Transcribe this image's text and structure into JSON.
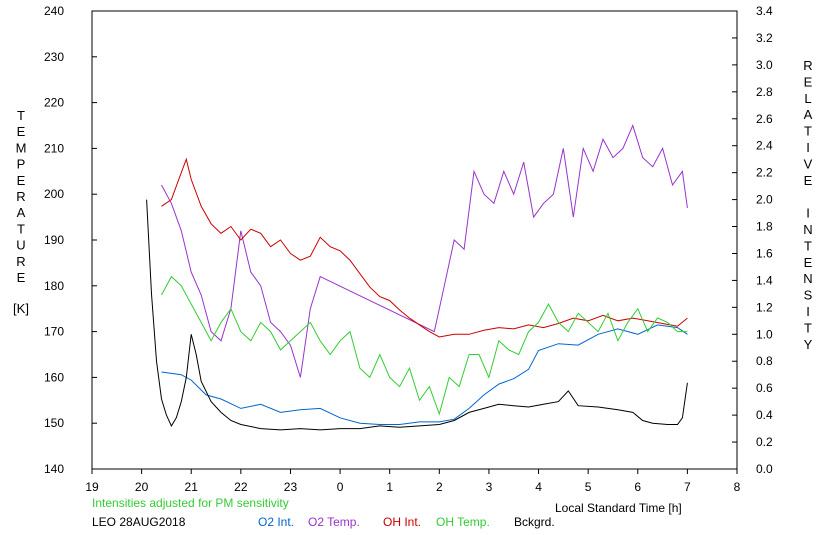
{
  "chart_data": {
    "type": "line",
    "xlabel": "Local Standard Time [h]",
    "ylabel_left_letters": [
      "T",
      "E",
      "M",
      "P",
      "E",
      "R",
      "A",
      "T",
      "U",
      "R",
      "E"
    ],
    "ylabel_left_unit": "[K]",
    "ylabel_right_words": [
      [
        "R",
        "E",
        "L",
        "A",
        "T",
        "I",
        "V",
        "E"
      ],
      [
        "I",
        "N",
        "T",
        "E",
        "N",
        "S",
        "I",
        "T",
        "Y"
      ]
    ],
    "x_ticks": [
      "19",
      "20",
      "21",
      "22",
      "23",
      "0",
      "1",
      "2",
      "3",
      "4",
      "5",
      "6",
      "7",
      "8"
    ],
    "xlim": [
      19,
      32
    ],
    "y_left_ticks": [
      "140",
      "150",
      "160",
      "170",
      "180",
      "190",
      "200",
      "210",
      "220",
      "230",
      "240"
    ],
    "ylim_left": [
      140,
      240
    ],
    "y_right_ticks": [
      "0.0",
      "0.2",
      "0.4",
      "0.6",
      "0.8",
      "1.0",
      "1.2",
      "1.4",
      "1.6",
      "1.8",
      "2.0",
      "2.2",
      "2.4",
      "2.6",
      "2.8",
      "3.0",
      "3.2",
      "3.4"
    ],
    "ylim_right": [
      0,
      3.4
    ],
    "note": "Intensities adjusted for PM sensitivity",
    "station_date": "LEO 28AUG2018",
    "grid": false,
    "series": [
      {
        "name": "O2 Int.",
        "axis": "right",
        "color": "#0066cc",
        "x": [
          20.4,
          20.8,
          21.0,
          21.3,
          21.6,
          22.0,
          22.4,
          22.8,
          23.2,
          23.6,
          24.0,
          24.4,
          24.8,
          25.2,
          25.6,
          26.0,
          26.3,
          26.6,
          26.9,
          27.2,
          27.5,
          27.8,
          28.0,
          28.4,
          28.8,
          29.2,
          29.6,
          30.0,
          30.4,
          30.8,
          31.0
        ],
        "y": [
          0.72,
          0.7,
          0.66,
          0.55,
          0.52,
          0.45,
          0.48,
          0.42,
          0.44,
          0.45,
          0.38,
          0.34,
          0.33,
          0.33,
          0.35,
          0.35,
          0.37,
          0.45,
          0.55,
          0.63,
          0.67,
          0.74,
          0.88,
          0.93,
          0.92,
          1.0,
          1.04,
          1.0,
          1.07,
          1.05,
          1.0
        ]
      },
      {
        "name": "O2 Temp.",
        "axis": "left",
        "color": "#9933cc",
        "x": [
          20.4,
          20.6,
          20.8,
          21.0,
          21.2,
          21.4,
          21.6,
          21.8,
          22.0,
          22.2,
          22.4,
          22.6,
          22.8,
          23.0,
          23.2,
          23.4,
          23.6,
          25.9,
          26.1,
          26.3,
          26.5,
          26.7,
          26.9,
          27.1,
          27.3,
          27.5,
          27.7,
          27.9,
          28.1,
          28.3,
          28.5,
          28.7,
          28.9,
          29.1,
          29.3,
          29.5,
          29.7,
          29.9,
          30.1,
          30.3,
          30.5,
          30.7,
          30.9,
          31.0
        ],
        "y": [
          202,
          198,
          192,
          183,
          178,
          170,
          168,
          175,
          192,
          183,
          180,
          172,
          170,
          167,
          160,
          175,
          182,
          170,
          180,
          190,
          188,
          205,
          200,
          198,
          205,
          200,
          207,
          195,
          198,
          200,
          210,
          195,
          210,
          205,
          212,
          208,
          210,
          215,
          208,
          206,
          210,
          202,
          205,
          197
        ]
      },
      {
        "name": "OH Int.",
        "axis": "right",
        "color": "#cc0000",
        "x": [
          20.4,
          20.6,
          20.8,
          20.9,
          21.0,
          21.2,
          21.4,
          21.6,
          21.8,
          22.0,
          22.2,
          22.4,
          22.6,
          22.8,
          23.0,
          23.2,
          23.4,
          23.6,
          23.8,
          24.0,
          24.2,
          24.4,
          24.6,
          24.8,
          25.0,
          25.2,
          25.4,
          25.6,
          25.8,
          26.0,
          26.3,
          26.6,
          26.9,
          27.2,
          27.5,
          27.8,
          28.1,
          28.4,
          28.7,
          29.0,
          29.3,
          29.6,
          29.9,
          30.2,
          30.5,
          30.8,
          31.0
        ],
        "y": [
          1.95,
          2.0,
          2.2,
          2.3,
          2.15,
          1.95,
          1.82,
          1.75,
          1.8,
          1.7,
          1.78,
          1.75,
          1.65,
          1.7,
          1.6,
          1.55,
          1.58,
          1.72,
          1.65,
          1.62,
          1.55,
          1.45,
          1.35,
          1.28,
          1.25,
          1.18,
          1.12,
          1.07,
          1.02,
          0.98,
          1.0,
          1.0,
          1.03,
          1.05,
          1.04,
          1.07,
          1.05,
          1.08,
          1.12,
          1.1,
          1.14,
          1.1,
          1.12,
          1.1,
          1.08,
          1.06,
          1.12
        ]
      },
      {
        "name": "OH Temp.",
        "axis": "left",
        "color": "#33cc33",
        "x": [
          20.4,
          20.6,
          20.8,
          21.0,
          21.2,
          21.4,
          21.6,
          21.8,
          22.0,
          22.2,
          22.4,
          22.6,
          22.8,
          23.0,
          23.2,
          23.4,
          23.6,
          23.8,
          24.0,
          24.2,
          24.4,
          24.6,
          24.8,
          25.0,
          25.2,
          25.4,
          25.6,
          25.8,
          26.0,
          26.2,
          26.4,
          26.6,
          26.8,
          27.0,
          27.2,
          27.4,
          27.6,
          27.8,
          28.0,
          28.2,
          28.4,
          28.6,
          28.8,
          29.0,
          29.2,
          29.4,
          29.6,
          29.8,
          30.0,
          30.2,
          30.4,
          30.6,
          30.8,
          31.0
        ],
        "y": [
          178,
          182,
          180,
          176,
          172,
          168,
          172,
          175,
          170,
          168,
          172,
          170,
          166,
          168,
          170,
          172,
          168,
          165,
          168,
          170,
          162,
          160,
          165,
          160,
          158,
          162,
          155,
          158,
          152,
          160,
          158,
          165,
          165,
          160,
          168,
          166,
          165,
          170,
          172,
          176,
          172,
          170,
          174,
          172,
          170,
          174,
          168,
          172,
          175,
          170,
          173,
          172,
          170,
          170
        ]
      },
      {
        "name": "Bckgrd.",
        "axis": "right",
        "color": "#000000",
        "x": [
          20.1,
          20.2,
          20.3,
          20.4,
          20.5,
          20.6,
          20.7,
          20.8,
          20.9,
          21.0,
          21.1,
          21.2,
          21.4,
          21.6,
          21.8,
          22.0,
          22.4,
          22.8,
          23.2,
          23.6,
          24.0,
          24.4,
          24.8,
          25.2,
          25.6,
          26.0,
          26.3,
          26.6,
          26.9,
          27.2,
          27.5,
          27.8,
          28.1,
          28.4,
          28.6,
          28.8,
          29.2,
          29.6,
          29.9,
          30.1,
          30.3,
          30.6,
          30.8,
          30.9,
          31.0
        ],
        "y": [
          2.0,
          1.3,
          0.8,
          0.52,
          0.4,
          0.32,
          0.38,
          0.5,
          0.68,
          1.0,
          0.85,
          0.65,
          0.5,
          0.42,
          0.36,
          0.33,
          0.3,
          0.29,
          0.3,
          0.29,
          0.3,
          0.3,
          0.32,
          0.31,
          0.32,
          0.33,
          0.36,
          0.42,
          0.45,
          0.48,
          0.47,
          0.46,
          0.48,
          0.5,
          0.58,
          0.47,
          0.46,
          0.44,
          0.42,
          0.36,
          0.34,
          0.33,
          0.33,
          0.38,
          0.64
        ]
      }
    ]
  }
}
